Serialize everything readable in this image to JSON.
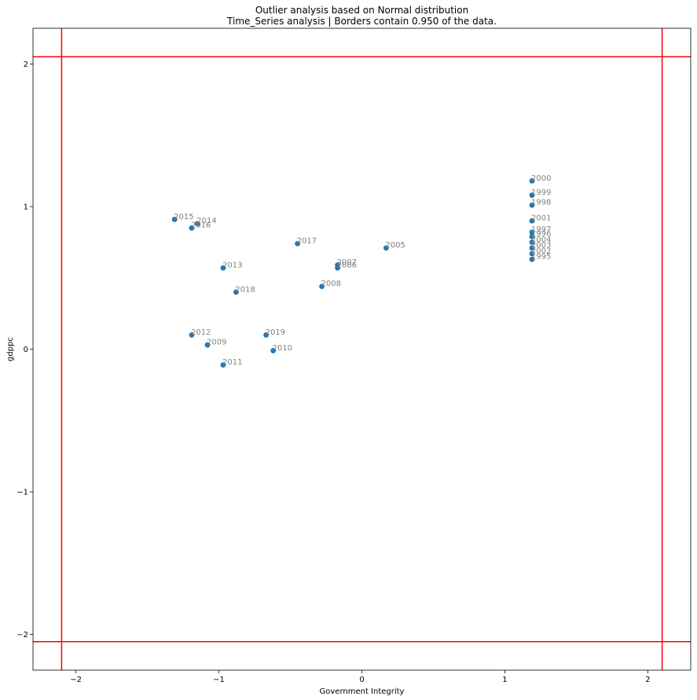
{
  "chart_data": {
    "type": "scatter",
    "title": "Outlier analysis based on Normal distribution",
    "subtitle": "Time_Series analysis | Borders contain 0.950 of the data.",
    "xlabel": "Government Integrity",
    "ylabel": "gdppc",
    "xlim": [
      -2.3,
      2.3
    ],
    "ylim": [
      -2.25,
      2.25
    ],
    "xticks": [
      -2,
      -1,
      0,
      1,
      2
    ],
    "yticks": [
      -2,
      -1,
      0,
      1,
      2
    ],
    "xtick_labels": [
      "−2",
      "−1",
      "0",
      "1",
      "2"
    ],
    "ytick_labels": [
      "−2",
      "−1",
      "0",
      "1",
      "2"
    ],
    "grid": false,
    "borders": {
      "x": [
        -2.1,
        2.1
      ],
      "y": [
        -2.05,
        2.05
      ],
      "color": "#ff0000"
    },
    "point_color": "#1f77b4",
    "label_color": "#808080",
    "points": [
      {
        "label": "1995",
        "x": 1.19,
        "y": 0.63
      },
      {
        "label": "1996",
        "x": 1.19,
        "y": 0.79
      },
      {
        "label": "1997",
        "x": 1.19,
        "y": 0.82
      },
      {
        "label": "1998",
        "x": 1.19,
        "y": 1.01
      },
      {
        "label": "1999",
        "x": 1.19,
        "y": 1.08
      },
      {
        "label": "2000",
        "x": 1.19,
        "y": 1.18
      },
      {
        "label": "2001",
        "x": 1.19,
        "y": 0.9
      },
      {
        "label": "2002",
        "x": 1.19,
        "y": 0.67
      },
      {
        "label": "2003",
        "x": 1.19,
        "y": 0.71
      },
      {
        "label": "2004",
        "x": 1.19,
        "y": 0.75
      },
      {
        "label": "2005",
        "x": 0.17,
        "y": 0.71
      },
      {
        "label": "2006",
        "x": -0.17,
        "y": 0.57
      },
      {
        "label": "2007",
        "x": -0.17,
        "y": 0.59
      },
      {
        "label": "2008",
        "x": -0.28,
        "y": 0.44
      },
      {
        "label": "2009",
        "x": -1.08,
        "y": 0.03
      },
      {
        "label": "2010",
        "x": -0.62,
        "y": -0.01
      },
      {
        "label": "2011",
        "x": -0.97,
        "y": -0.11
      },
      {
        "label": "2012",
        "x": -1.19,
        "y": 0.1
      },
      {
        "label": "2013",
        "x": -0.97,
        "y": 0.57
      },
      {
        "label": "2014",
        "x": -1.15,
        "y": 0.88
      },
      {
        "label": "2015",
        "x": -1.31,
        "y": 0.91
      },
      {
        "label": "2016",
        "x": -1.19,
        "y": 0.85
      },
      {
        "label": "2017",
        "x": -0.45,
        "y": 0.74
      },
      {
        "label": "2018",
        "x": -0.88,
        "y": 0.4
      },
      {
        "label": "2019",
        "x": -0.67,
        "y": 0.1
      }
    ]
  }
}
